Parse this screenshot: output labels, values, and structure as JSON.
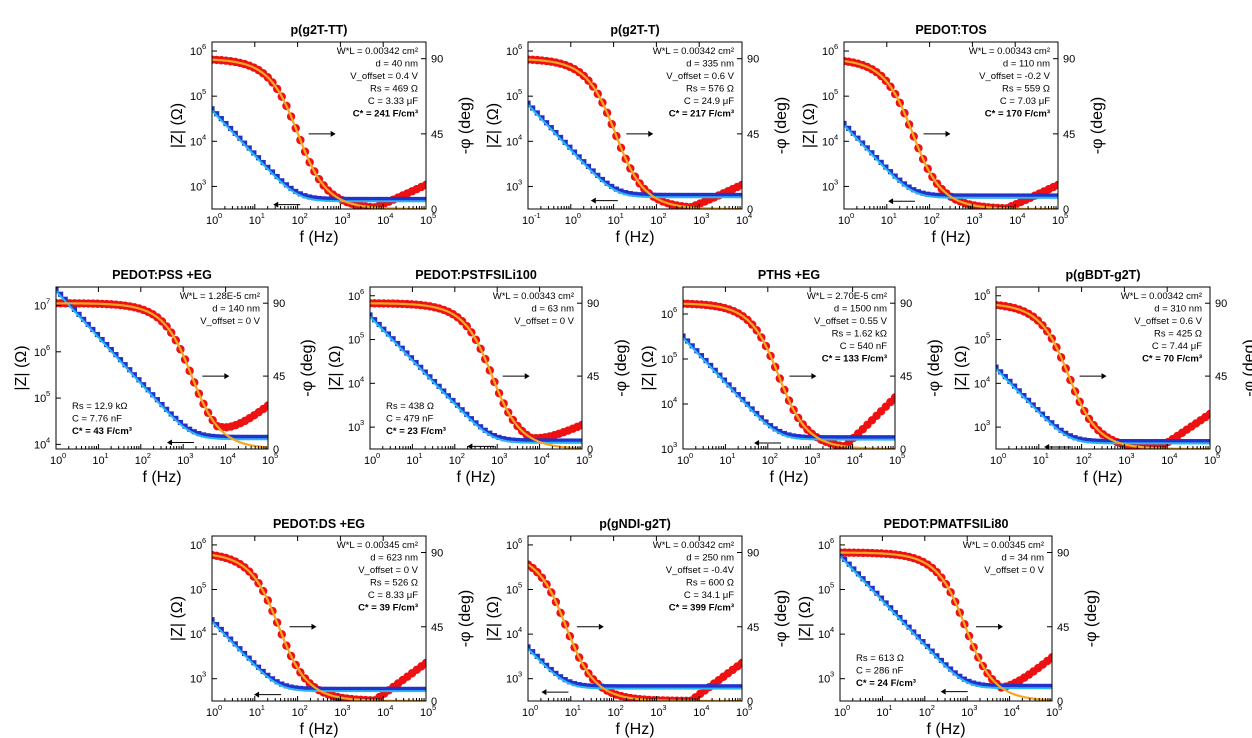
{
  "chart_data": [
    {
      "type": "scatter",
      "title": "p(g2T-TT)",
      "xlabel": "f (Hz)",
      "ylabel": "|Z| (Ω)",
      "y2label": "-φ (deg)",
      "xlim_exp": [
        0,
        5
      ],
      "ylim_exp": [
        2.5,
        6.2
      ],
      "y2lim": [
        0,
        100
      ],
      "annotations": [
        "W*L = 0.00342 cm²",
        "d = 40 nm",
        "V_offset = 0.4 V",
        "Rs = 469 Ω",
        "C = 3.33 μF",
        "C* = 241 F/cm³"
      ],
      "ann_pos": "right",
      "model": {
        "Rs": 469,
        "C": 3.33e-06,
        "Rh": 0.0,
        "Rleak_ratio": 0.14
      },
      "series": [
        {
          "name": "|Z| measured",
          "color": "#2233cc"
        },
        {
          "name": "|Z| fit",
          "color": "#29b6f6"
        },
        {
          "name": "-φ measured",
          "color": "#ee1111"
        },
        {
          "name": "-φ fit",
          "color": "#f5a623"
        }
      ]
    },
    {
      "type": "scatter",
      "title": "p(g2T-T)",
      "xlabel": "f (Hz)",
      "ylabel": "|Z| (Ω)",
      "y2label": "-φ (deg)",
      "xlim_exp": [
        -1,
        4
      ],
      "ylim_exp": [
        2.5,
        6.2
      ],
      "y2lim": [
        0,
        100
      ],
      "annotations": [
        "W*L = 0.00342 cm²",
        "d = 335 nm",
        "V_offset = 0.6 V",
        "Rs = 576 Ω",
        "C = 24.9 μF",
        "C* = 217 F/cm³"
      ],
      "ann_pos": "right",
      "model": {
        "Rs": 576,
        "C": 2.49e-05,
        "Rh": 0.0,
        "Rleak_ratio": 0.14
      },
      "series": [
        {
          "name": "|Z| measured",
          "color": "#2233cc"
        },
        {
          "name": "|Z| fit",
          "color": "#29b6f6"
        },
        {
          "name": "-φ measured",
          "color": "#ee1111"
        },
        {
          "name": "-φ fit",
          "color": "#f5a623"
        }
      ]
    },
    {
      "type": "scatter",
      "title": "PEDOT:TOS",
      "xlabel": "f (Hz)",
      "ylabel": "|Z| (Ω)",
      "y2label": "-φ (deg)",
      "xlim_exp": [
        0,
        5
      ],
      "ylim_exp": [
        2.5,
        6.2
      ],
      "y2lim": [
        0,
        100
      ],
      "annotations": [
        "W*L = 0.00343 cm²",
        "d = 110 nm",
        "V_offset = -0.2 V",
        "Rs = 559 Ω",
        "C = 7.03 μF",
        "C* = 170 F/cm³"
      ],
      "ann_pos": "right",
      "model": {
        "Rs": 559,
        "C": 7.03e-06,
        "Rh": 0.0,
        "Rleak_ratio": 0.14
      },
      "series": [
        {
          "name": "|Z| measured",
          "color": "#2233cc"
        },
        {
          "name": "|Z| fit",
          "color": "#29b6f6"
        },
        {
          "name": "-φ measured",
          "color": "#ee1111"
        },
        {
          "name": "-φ fit",
          "color": "#f5a623"
        }
      ]
    },
    {
      "type": "scatter",
      "title": "PEDOT:PSS +EG",
      "xlabel": "f (Hz)",
      "ylabel": "|Z| (Ω)",
      "y2label": "-φ (deg)",
      "xlim_exp": [
        0,
        5
      ],
      "ylim_exp": [
        3.9,
        7.4
      ],
      "y2lim": [
        0,
        100
      ],
      "annotations": [
        "W*L = 1.28E-5 cm²",
        "d = 140 nm",
        "V_offset = 0 V",
        "Rs = 12.9 kΩ",
        "C = 7.76 nF",
        "C* = 43 F/cm³"
      ],
      "ann_pos": "split",
      "model": {
        "Rs": 12900,
        "C": 7.76e-09,
        "Rh": 0.08,
        "Rleak_ratio": 0.14
      },
      "series": [
        {
          "name": "|Z| measured",
          "color": "#2233cc"
        },
        {
          "name": "|Z| fit",
          "color": "#29b6f6"
        },
        {
          "name": "-φ measured",
          "color": "#ee1111"
        },
        {
          "name": "-φ fit",
          "color": "#f5a623"
        }
      ]
    },
    {
      "type": "scatter",
      "title": "PEDOT:PSTFSILi100",
      "xlabel": "f (Hz)",
      "ylabel": "|Z| (Ω)",
      "y2label": "-φ (deg)",
      "xlim_exp": [
        0,
        5
      ],
      "ylim_exp": [
        2.5,
        6.2
      ],
      "y2lim": [
        0,
        100
      ],
      "annotations": [
        "W*L = 0.00343 cm²",
        "d = 63 nm",
        "V_offset = 0 V",
        "Rs = 438 Ω",
        "C = 479 nF",
        "C* = 23 F/cm³"
      ],
      "ann_pos": "split",
      "model": {
        "Rs": 438,
        "C": 4.79e-07,
        "Rh": 0.0,
        "Rleak_ratio": 0.14
      },
      "series": [
        {
          "name": "|Z| measured",
          "color": "#2233cc"
        },
        {
          "name": "|Z| fit",
          "color": "#29b6f6"
        },
        {
          "name": "-φ measured",
          "color": "#ee1111"
        },
        {
          "name": "-φ fit",
          "color": "#f5a623"
        }
      ]
    },
    {
      "type": "scatter",
      "title": "PTHS +EG",
      "xlabel": "f (Hz)",
      "ylabel": "|Z| (Ω)",
      "y2label": "-φ (deg)",
      "xlim_exp": [
        0,
        5
      ],
      "ylim_exp": [
        3,
        6.6
      ],
      "y2lim": [
        0,
        100
      ],
      "annotations": [
        "W*L = 2.70E-5 cm²",
        "d = 1500 nm",
        "V_offset = 0.55 V",
        "Rs = 1.62 kΩ",
        "C = 540 nF",
        "C* = 133 F/cm³"
      ],
      "ann_pos": "right",
      "model": {
        "Rs": 1620,
        "C": 5.4e-07,
        "Rh": 0.12,
        "Rleak_ratio": 0.14
      },
      "series": [
        {
          "name": "|Z| measured",
          "color": "#2233cc"
        },
        {
          "name": "|Z| fit",
          "color": "#29b6f6"
        },
        {
          "name": "-φ measured",
          "color": "#ee1111"
        },
        {
          "name": "-φ fit",
          "color": "#f5a623"
        }
      ]
    },
    {
      "type": "scatter",
      "title": "p(gBDT-g2T)",
      "xlabel": "f (Hz)",
      "ylabel": "|Z| (Ω)",
      "y2label": "-φ (deg)",
      "xlim_exp": [
        0,
        5
      ],
      "ylim_exp": [
        2.5,
        6.2
      ],
      "y2lim": [
        0,
        100
      ],
      "annotations": [
        "W*L = 0.00342 cm²",
        "d = 310 nm",
        "V_offset = 0.6 V",
        "Rs = 425 Ω",
        "C = 7.44 μF",
        "C* = 70 F/cm³"
      ],
      "ann_pos": "right",
      "model": {
        "Rs": 425,
        "C": 7.44e-06,
        "Rh": 0.05,
        "Rleak_ratio": 0.14
      },
      "series": [
        {
          "name": "|Z| measured",
          "color": "#2233cc"
        },
        {
          "name": "|Z| fit",
          "color": "#29b6f6"
        },
        {
          "name": "-φ measured",
          "color": "#ee1111"
        },
        {
          "name": "-φ fit",
          "color": "#f5a623"
        }
      ]
    },
    {
      "type": "scatter",
      "title": "PEDOT:DS +EG",
      "xlabel": "f (Hz)",
      "ylabel": "|Z| (Ω)",
      "y2label": "-φ (deg)",
      "xlim_exp": [
        0,
        5
      ],
      "ylim_exp": [
        2.5,
        6.2
      ],
      "y2lim": [
        0,
        100
      ],
      "annotations": [
        "W*L = 0.00345 cm²",
        "d = 623 nm",
        "V_offset = 0 V",
        "Rs = 526 Ω",
        "C = 8.33 μF",
        "C* = 39 F/cm³"
      ],
      "ann_pos": "right",
      "model": {
        "Rs": 526,
        "C": 8.33e-06,
        "Rh": 0.06,
        "Rleak_ratio": 0.14
      },
      "series": [
        {
          "name": "|Z| measured",
          "color": "#2233cc"
        },
        {
          "name": "|Z| fit",
          "color": "#29b6f6"
        },
        {
          "name": "-φ measured",
          "color": "#ee1111"
        },
        {
          "name": "-φ fit",
          "color": "#f5a623"
        }
      ]
    },
    {
      "type": "scatter",
      "title": "p(gNDI-g2T)",
      "xlabel": "f (Hz)",
      "ylabel": "|Z| (Ω)",
      "y2label": "-φ (deg)",
      "xlim_exp": [
        0,
        5
      ],
      "ylim_exp": [
        2.5,
        6.2
      ],
      "y2lim": [
        0,
        100
      ],
      "annotations": [
        "W*L = 0.00342 cm²",
        "d = 250 nm",
        "V_offset = -0.4V",
        "Rs = 600 Ω",
        "C = 34.1 μF",
        "C* = 399 F/cm³"
      ],
      "ann_pos": "right",
      "model": {
        "Rs": 600,
        "C": 3.41e-05,
        "Rh": 0.06,
        "Rleak_ratio": 0.14
      },
      "series": [
        {
          "name": "|Z| measured",
          "color": "#2233cc"
        },
        {
          "name": "|Z| fit",
          "color": "#29b6f6"
        },
        {
          "name": "-φ measured",
          "color": "#ee1111"
        },
        {
          "name": "-φ fit",
          "color": "#f5a623"
        }
      ]
    },
    {
      "type": "scatter",
      "title": "PEDOT:PMATFSILi80",
      "xlabel": "f (Hz)",
      "ylabel": "|Z| (Ω)",
      "y2label": "-φ (deg)",
      "xlim_exp": [
        0,
        5
      ],
      "ylim_exp": [
        2.5,
        6.2
      ],
      "y2lim": [
        0,
        100
      ],
      "annotations": [
        "W*L = 0.00345 cm²",
        "d = 34 nm",
        "V_offset = 0 V",
        "Rs = 613 Ω",
        "C = 286 nF",
        "C* = 24 F/cm³"
      ],
      "ann_pos": "split",
      "model": {
        "Rs": 613,
        "C": 2.86e-07,
        "Rh": 0.08,
        "Rleak_ratio": 0.14
      },
      "series": [
        {
          "name": "|Z| measured",
          "color": "#2233cc"
        },
        {
          "name": "|Z| fit",
          "color": "#29b6f6"
        },
        {
          "name": "-φ measured",
          "color": "#ee1111"
        },
        {
          "name": "-φ fit",
          "color": "#f5a623"
        }
      ]
    }
  ]
}
